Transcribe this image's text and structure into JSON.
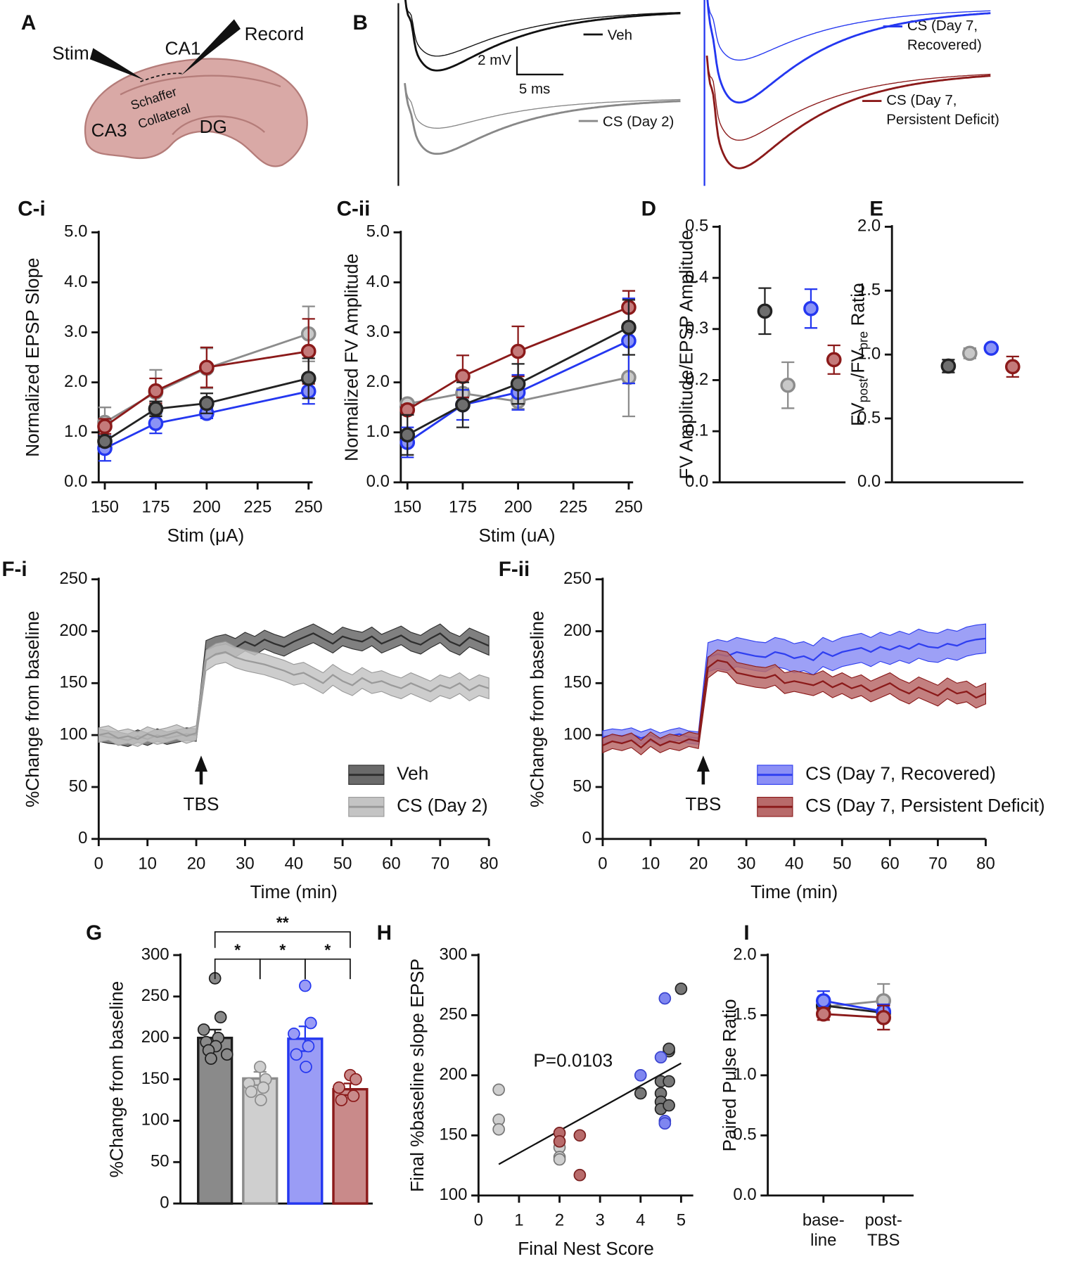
{
  "diagram": {
    "panel": "A",
    "labels": {
      "stim": "Stim",
      "record": "Record",
      "ca1": "CA1",
      "schaffer": "Schaffer",
      "collateral": "Collateral",
      "ca3": "CA3",
      "dg": "DG"
    }
  },
  "traces": {
    "panel": "B",
    "legend": {
      "veh": "Veh",
      "day2": "CS (Day 2)",
      "recovered": [
        "CS (Day 7,",
        "Recovered)"
      ],
      "deficit": [
        "CS (Day 7,",
        "Persistent Deficit)"
      ]
    },
    "scale_y": "2 mV",
    "scale_x": "5 ms"
  },
  "chart_data": [
    {
      "panel": "C-i",
      "type": "line",
      "ylabel": "Normalized EPSP Slope",
      "xlabel": "Stim (μA)",
      "x": [
        150,
        175,
        200,
        250
      ],
      "xlim": [
        147,
        252
      ],
      "xticks": [
        150,
        175,
        200,
        225,
        250
      ],
      "ylim": [
        0,
        5
      ],
      "yticks": [
        {
          "value": 0,
          "label": "0.0"
        },
        {
          "value": 1,
          "label": "1.0"
        },
        {
          "value": 2,
          "label": "2.0"
        },
        {
          "value": 3,
          "label": "3.0"
        },
        {
          "value": 4,
          "label": "4.0"
        },
        {
          "value": 5,
          "label": "5.0"
        }
      ],
      "series": [
        {
          "color": "#8c8c8c",
          "fill": "#c8c8c8",
          "values": [
            1.2,
            1.8,
            2.28,
            2.97
          ],
          "errors": [
            0.3,
            0.45,
            0.4,
            0.55
          ]
        },
        {
          "color": "#8b1a1a",
          "fill": "#c47a7a",
          "values": [
            1.12,
            1.83,
            2.3,
            2.62
          ],
          "errors": [
            0.15,
            0.25,
            0.4,
            0.65
          ]
        },
        {
          "color": "#2437f0",
          "fill": "#8a93f5",
          "values": [
            0.68,
            1.18,
            1.38,
            1.82
          ],
          "errors": [
            0.25,
            0.2,
            0.1,
            0.25
          ]
        },
        {
          "color": "#222222",
          "fill": "#6e6e6e",
          "values": [
            0.82,
            1.47,
            1.58,
            2.08
          ],
          "errors": [
            0.1,
            0.15,
            0.2,
            0.4
          ]
        }
      ]
    },
    {
      "panel": "C-ii",
      "type": "line",
      "ylabel": "Normalized FV Amplitude",
      "xlabel": "Stim (uA)",
      "x": [
        150,
        175,
        200,
        250
      ],
      "xlim": [
        147,
        252
      ],
      "xticks": [
        150,
        175,
        200,
        225,
        250
      ],
      "ylim": [
        0,
        5
      ],
      "yticks": [
        {
          "value": 0,
          "label": "0.0"
        },
        {
          "value": 1,
          "label": "1.0"
        },
        {
          "value": 2,
          "label": "2.0"
        },
        {
          "value": 3,
          "label": "3.0"
        },
        {
          "value": 4,
          "label": "4.0"
        },
        {
          "value": 5,
          "label": "5.0"
        }
      ],
      "series": [
        {
          "color": "#8c8c8c",
          "fill": "#c8c8c8",
          "values": [
            1.57,
            1.78,
            1.62,
            2.1
          ],
          "errors": [
            0.05,
            0.1,
            0.15,
            0.78
          ]
        },
        {
          "color": "#8b1a1a",
          "fill": "#c47a7a",
          "values": [
            1.45,
            2.12,
            2.62,
            3.5
          ],
          "errors": [
            0.1,
            0.42,
            0.5,
            0.33
          ]
        },
        {
          "color": "#2437f0",
          "fill": "#8a93f5",
          "values": [
            0.8,
            1.55,
            1.8,
            2.83
          ],
          "errors": [
            0.3,
            0.3,
            0.35,
            0.85
          ]
        },
        {
          "color": "#222222",
          "fill": "#6e6e6e",
          "values": [
            0.95,
            1.55,
            1.97,
            3.1
          ],
          "errors": [
            0.4,
            0.45,
            0.4,
            0.55
          ]
        }
      ]
    },
    {
      "panel": "D",
      "type": "dot",
      "ylabel": "FV Amplitude/EPSP Amplitude",
      "categories": [
        null,
        null,
        null,
        null
      ],
      "ylim": [
        0,
        0.5
      ],
      "yticks": [
        {
          "value": 0,
          "label": "0.0"
        },
        0.1,
        0.2,
        0.3,
        0.4,
        0.5
      ],
      "series": [
        {
          "colors": [
            "#222222",
            "#8c8c8c",
            "#2437f0",
            "#8b1a1a"
          ],
          "fills": [
            "#6e6e6e",
            "#c8c8c8",
            "#8a93f5",
            "#c47a7a"
          ],
          "values": [
            0.335,
            0.19,
            0.34,
            0.24
          ],
          "errors": [
            0.045,
            0.045,
            0.038,
            0.028
          ]
        }
      ]
    },
    {
      "panel": "E",
      "type": "dot",
      "ylabel_parts": [
        "FV",
        "post",
        "/FV",
        "pre",
        " Ratio"
      ],
      "categories": [
        null,
        null,
        null,
        null
      ],
      "ylim": [
        0,
        2
      ],
      "yticks": [
        {
          "value": 0,
          "label": "0.0"
        },
        {
          "value": 0.5,
          "label": "0.5"
        },
        {
          "value": 1,
          "label": "1.0"
        },
        {
          "value": 1.5,
          "label": "1.5"
        },
        {
          "value": 2,
          "label": "2.0"
        }
      ],
      "series": [
        {
          "colors": [
            "#222222",
            "#8c8c8c",
            "#2437f0",
            "#8b1a1a"
          ],
          "fills": [
            "#6e6e6e",
            "#c8c8c8",
            "#8a93f5",
            "#c47a7a"
          ],
          "values": [
            0.91,
            1.01,
            1.05,
            0.905
          ],
          "errors": [
            0.05,
            0.04,
            0.02,
            0.08
          ]
        }
      ]
    },
    {
      "panel": "F-i",
      "type": "band",
      "ylabel": "%Change from baseline",
      "xlabel": "Time (min)",
      "legend": "lower right",
      "x": [
        0,
        2,
        4,
        6,
        8,
        10,
        12,
        14,
        16,
        18,
        20,
        22,
        24,
        26,
        28,
        30,
        32,
        34,
        36,
        38,
        40,
        42,
        44,
        46,
        48,
        50,
        52,
        54,
        56,
        58,
        60,
        62,
        64,
        66,
        68,
        70,
        72,
        74,
        76,
        78,
        80
      ],
      "xlim": [
        0,
        80
      ],
      "xticks": [
        0,
        10,
        20,
        30,
        40,
        50,
        60,
        70,
        80
      ],
      "ylim": [
        0,
        250
      ],
      "yticks": [
        0,
        50,
        100,
        150,
        200,
        250
      ],
      "annotations": [
        {
          "text": "TBS",
          "x": 21
        }
      ],
      "series": [
        {
          "name": "Veh",
          "color": "#2e2e2e",
          "band_color": "#6a6a6a",
          "values": [
            100,
            98,
            97,
            95,
            99,
            96,
            100,
            97,
            99,
            101,
            100,
            182,
            186,
            188,
            184,
            190,
            186,
            192,
            188,
            185,
            190,
            194,
            198,
            193,
            188,
            195,
            192,
            190,
            195,
            188,
            192,
            196,
            190,
            187,
            193,
            198,
            190,
            186,
            194,
            190,
            186
          ],
          "errors": [
            6,
            6,
            6,
            6,
            6,
            6,
            6,
            6,
            6,
            6,
            6,
            9,
            9,
            9,
            9,
            9,
            9,
            9,
            9,
            9,
            9,
            9,
            9,
            9,
            9,
            9,
            9,
            9,
            9,
            9,
            9,
            9,
            9,
            9,
            9,
            9,
            9,
            9,
            9,
            9,
            9
          ]
        },
        {
          "name": "CS (Day 2)",
          "color": "#9a9a9a",
          "band_color": "#c4c4c4",
          "values": [
            100,
            102,
            97,
            99,
            96,
            101,
            98,
            100,
            103,
            99,
            102,
            172,
            178,
            180,
            175,
            172,
            170,
            168,
            165,
            162,
            158,
            160,
            155,
            150,
            158,
            152,
            148,
            155,
            150,
            152,
            148,
            145,
            150,
            146,
            142,
            148,
            145,
            150,
            143,
            148,
            145
          ],
          "errors": [
            7,
            7,
            7,
            7,
            7,
            7,
            7,
            7,
            7,
            7,
            7,
            10,
            10,
            10,
            10,
            10,
            10,
            10,
            10,
            10,
            10,
            10,
            10,
            10,
            10,
            10,
            10,
            10,
            10,
            10,
            10,
            10,
            10,
            10,
            10,
            10,
            10,
            10,
            10,
            10,
            10
          ]
        }
      ]
    },
    {
      "panel": "F-ii",
      "type": "band",
      "ylabel": "%Change from baseline",
      "xlabel": "Time (min)",
      "legend": "lower right",
      "x": [
        0,
        2,
        4,
        6,
        8,
        10,
        12,
        14,
        16,
        18,
        20,
        22,
        24,
        26,
        28,
        30,
        32,
        34,
        36,
        38,
        40,
        42,
        44,
        46,
        48,
        50,
        52,
        54,
        56,
        58,
        60,
        62,
        64,
        66,
        68,
        70,
        72,
        74,
        76,
        78,
        80
      ],
      "xlim": [
        0,
        80
      ],
      "xticks": [
        0,
        10,
        20,
        30,
        40,
        50,
        60,
        70,
        80
      ],
      "ylim": [
        0,
        250
      ],
      "yticks": [
        0,
        50,
        100,
        150,
        200,
        250
      ],
      "annotations": [
        {
          "text": "TBS",
          "x": 21
        }
      ],
      "series": [
        {
          "name": "CS (Day 7, Recovered)",
          "color": "#2f3ff0",
          "band_color": "#8c8ff5",
          "values": [
            98,
            100,
            99,
            101,
            97,
            100,
            96,
            99,
            101,
            98,
            97,
            175,
            178,
            176,
            180,
            178,
            176,
            175,
            180,
            178,
            174,
            176,
            172,
            180,
            176,
            180,
            182,
            184,
            180,
            185,
            182,
            186,
            183,
            188,
            185,
            184,
            188,
            186,
            190,
            192,
            193
          ],
          "errors": [
            6,
            6,
            6,
            6,
            6,
            6,
            6,
            6,
            6,
            6,
            6,
            14,
            14,
            14,
            14,
            14,
            14,
            14,
            14,
            14,
            14,
            14,
            14,
            14,
            14,
            14,
            14,
            14,
            14,
            14,
            14,
            14,
            14,
            14,
            14,
            14,
            14,
            14,
            14,
            14,
            14
          ]
        },
        {
          "name": "CS (Day 7, Persistent Deficit)",
          "color": "#8b1a1a",
          "band_color": "#b86a6a",
          "values": [
            90,
            94,
            92,
            95,
            88,
            96,
            90,
            94,
            92,
            96,
            94,
            165,
            172,
            170,
            160,
            158,
            156,
            155,
            158,
            150,
            152,
            150,
            148,
            152,
            146,
            150,
            145,
            148,
            142,
            146,
            150,
            144,
            140,
            146,
            142,
            138,
            145,
            140,
            142,
            136,
            140
          ],
          "errors": [
            7,
            7,
            7,
            7,
            7,
            7,
            7,
            7,
            7,
            7,
            7,
            10,
            10,
            10,
            10,
            10,
            10,
            10,
            10,
            10,
            10,
            10,
            10,
            10,
            10,
            10,
            10,
            10,
            10,
            10,
            10,
            10,
            10,
            10,
            10,
            10,
            10,
            10,
            10,
            10,
            10
          ]
        }
      ]
    },
    {
      "panel": "G",
      "type": "bar",
      "ylabel": "%Change from baseline",
      "categories": [
        null,
        null,
        null,
        null
      ],
      "ylim": [
        0,
        300
      ],
      "yticks": [
        0,
        50,
        100,
        150,
        200,
        250,
        300
      ],
      "values": [
        200,
        151,
        199,
        138
      ],
      "errors": [
        10,
        8,
        15,
        7
      ],
      "colors": [
        "#1e1e1e",
        "#8c8c8c",
        "#2437f0",
        "#8b1a1a"
      ],
      "fills": [
        "#8a8a8a",
        "#cfcfcf",
        "#9a9cf5",
        "#c98a8a"
      ],
      "points": [
        [
          272,
          225,
          210,
          200,
          195,
          190,
          185,
          180,
          175
        ],
        [
          165,
          150,
          145,
          140,
          135,
          125
        ],
        [
          263,
          218,
          205,
          190,
          180,
          165
        ],
        [
          155,
          150,
          140,
          130,
          125
        ]
      ],
      "significance": [
        "**",
        "*",
        "*",
        "*"
      ]
    },
    {
      "panel": "H",
      "type": "scatter",
      "ylabel": "Final %baseline slope EPSP",
      "xlabel": "Final Nest Score",
      "xlim": [
        0,
        5.3
      ],
      "xticks": [
        0,
        1,
        2,
        3,
        4,
        5
      ],
      "ylim": [
        100,
        300
      ],
      "yticks": [
        100,
        150,
        200,
        250,
        300
      ],
      "annotation": "P=0.0103",
      "fit": {
        "x": [
          0.5,
          5
        ],
        "y": [
          126,
          210
        ]
      },
      "series": [
        {
          "color": "#777777",
          "fill": "#cfcfcf",
          "x": [
            0.5,
            0.5,
            0.5,
            2,
            2,
            2
          ],
          "y": [
            188,
            163,
            155,
            140,
            132,
            130
          ]
        },
        {
          "color": "#7a2020",
          "fill": "#b86b6b",
          "x": [
            2,
            2,
            2.5,
            2.5
          ],
          "y": [
            152,
            145,
            150,
            117
          ]
        },
        {
          "color": "#222222",
          "fill": "#777777",
          "x": [
            4,
            4.5,
            4.5,
            4.5,
            4.5,
            4.7,
            4.7,
            4.7,
            4.7,
            5
          ],
          "y": [
            185,
            195,
            185,
            178,
            172,
            220,
            222,
            195,
            175,
            272
          ]
        },
        {
          "color": "#3a44d0",
          "fill": "#7f86f0",
          "x": [
            4,
            4.5,
            4.6,
            4.6,
            4.6
          ],
          "y": [
            200,
            215,
            264,
            162,
            160
          ]
        }
      ]
    },
    {
      "panel": "I",
      "type": "line",
      "ylabel": "Paired Pulse Ratio",
      "categories": [
        [
          "base-",
          "line"
        ],
        [
          "post-",
          "TBS"
        ]
      ],
      "ylim": [
        0,
        2
      ],
      "yticks": [
        {
          "value": 0,
          "label": "0.0"
        },
        {
          "value": 0.5,
          "label": "0.5"
        },
        {
          "value": 1,
          "label": "1.0"
        },
        {
          "value": 1.5,
          "label": "1.5"
        },
        {
          "value": 2,
          "label": "2.0"
        }
      ],
      "series": [
        {
          "color": "#8c8c8c",
          "fill": "#c8c8c8",
          "values": [
            1.57,
            1.62
          ],
          "errors": [
            0.05,
            0.14
          ]
        },
        {
          "color": "#222222",
          "fill": "#6e6e6e",
          "values": [
            1.58,
            1.52
          ],
          "errors": [
            0.05,
            0.06
          ]
        },
        {
          "color": "#2437f0",
          "fill": "#8a93f5",
          "values": [
            1.62,
            1.53
          ],
          "errors": [
            0.08,
            0.06
          ]
        },
        {
          "color": "#8b1a1a",
          "fill": "#c47a7a",
          "values": [
            1.51,
            1.48
          ],
          "errors": [
            0.05,
            0.1
          ]
        }
      ]
    }
  ]
}
